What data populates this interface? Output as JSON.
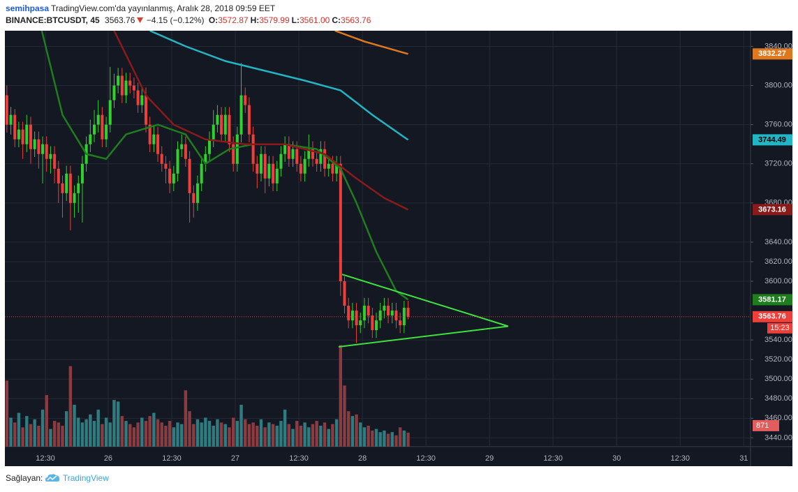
{
  "header": {
    "author": "semihpasa",
    "published": "TradingView.com'da yayınlanmış, Aralık 28, 2018 09:59 EET",
    "symbol": "BINANCE:BTCUSDT, 45",
    "last": "3563.76",
    "change": "−4.15 (−0.12%)",
    "ohlc": [
      {
        "label": "O:",
        "value": "3572.87"
      },
      {
        "label": "H:",
        "value": "3579.99"
      },
      {
        "label": "L:",
        "value": "3561.00"
      },
      {
        "label": "C:",
        "value": "3563.76"
      }
    ]
  },
  "chart_data": {
    "type": "candlestick",
    "up_color": "#2fd12f",
    "down_color": "#ef3f3a",
    "up_volume_color": "#2f7c80",
    "down_volume_color": "#8c3b40",
    "ylim": [
      3431,
      3856
    ],
    "yticks": [
      {
        "value": 3440,
        "label": "3440.00"
      },
      {
        "value": 3460,
        "label": "3460.00"
      },
      {
        "value": 3480,
        "label": "3480.00"
      },
      {
        "value": 3500,
        "label": "3500.00"
      },
      {
        "value": 3520,
        "label": "3520.00"
      },
      {
        "value": 3540,
        "label": "3540.00"
      },
      {
        "value": 3600,
        "label": "3600.00"
      },
      {
        "value": 3620,
        "label": "3620.00"
      },
      {
        "value": 3640,
        "label": "3640.00"
      },
      {
        "value": 3680,
        "label": "3680.00"
      },
      {
        "value": 3720,
        "label": "3720.00"
      },
      {
        "value": 3760,
        "label": "3760.00"
      },
      {
        "value": 3800,
        "label": "3800.00"
      },
      {
        "value": 3840,
        "label": "3840.00"
      }
    ],
    "xlim": [
      -0.5,
      187.2
    ],
    "xticks": [
      {
        "value": 9.7,
        "label": "12:30"
      },
      {
        "value": 25.5,
        "label": "26"
      },
      {
        "value": 41.5,
        "label": "12:30"
      },
      {
        "value": 57.5,
        "label": "27"
      },
      {
        "value": 73.5,
        "label": "12:30"
      },
      {
        "value": 89.5,
        "label": "28"
      },
      {
        "value": 105.5,
        "label": "12:30"
      },
      {
        "value": 121.5,
        "label": "29"
      },
      {
        "value": 137.5,
        "label": "12:30"
      },
      {
        "value": 153.5,
        "label": "30"
      },
      {
        "value": 169.5,
        "label": "12:30"
      },
      {
        "value": 185.5,
        "label": "31"
      }
    ],
    "grid": true,
    "ohlc": [
      [
        3790,
        3800,
        3752,
        3760
      ],
      [
        3760,
        3778,
        3750,
        3770
      ],
      [
        3770,
        3776,
        3737,
        3745
      ],
      [
        3745,
        3763,
        3737,
        3755
      ],
      [
        3755,
        3763,
        3725,
        3740
      ],
      [
        3740,
        3770,
        3732,
        3760
      ],
      [
        3760,
        3768,
        3720,
        3735
      ],
      [
        3735,
        3753,
        3727,
        3745
      ],
      [
        3745,
        3753,
        3715,
        3730
      ],
      [
        3730,
        3748,
        3700,
        3740
      ],
      [
        3740,
        3748,
        3712,
        3725
      ],
      [
        3725,
        3738,
        3710,
        3730
      ],
      [
        3730,
        3738,
        3700,
        3715
      ],
      [
        3715,
        3723,
        3680,
        3700
      ],
      [
        3700,
        3708,
        3665,
        3690
      ],
      [
        3690,
        3718,
        3682,
        3710
      ],
      [
        3710,
        3718,
        3652,
        3680
      ],
      [
        3680,
        3698,
        3665,
        3690
      ],
      [
        3690,
        3708,
        3670,
        3700
      ],
      [
        3700,
        3728,
        3660,
        3720
      ],
      [
        3720,
        3748,
        3712,
        3740
      ],
      [
        3740,
        3765,
        3732,
        3750
      ],
      [
        3750,
        3775,
        3742,
        3760
      ],
      [
        3760,
        3785,
        3752,
        3770
      ],
      [
        3770,
        3778,
        3737,
        3745
      ],
      [
        3745,
        3768,
        3737,
        3760
      ],
      [
        3760,
        3819,
        3752,
        3785
      ],
      [
        3785,
        3812,
        3777,
        3800
      ],
      [
        3800,
        3818,
        3792,
        3810
      ],
      [
        3810,
        3818,
        3782,
        3790
      ],
      [
        3790,
        3813,
        3782,
        3805
      ],
      [
        3805,
        3813,
        3792,
        3800
      ],
      [
        3800,
        3808,
        3787,
        3795
      ],
      [
        3795,
        3803,
        3772,
        3780
      ],
      [
        3780,
        3798,
        3772,
        3790
      ],
      [
        3790,
        3798,
        3752,
        3760
      ],
      [
        3760,
        3768,
        3732,
        3740
      ],
      [
        3740,
        3758,
        3732,
        3750
      ],
      [
        3750,
        3758,
        3722,
        3730
      ],
      [
        3730,
        3738,
        3712,
        3720
      ],
      [
        3720,
        3728,
        3700,
        3715
      ],
      [
        3715,
        3723,
        3690,
        3700
      ],
      [
        3700,
        3718,
        3692,
        3710
      ],
      [
        3710,
        3743,
        3702,
        3735
      ],
      [
        3735,
        3750,
        3727,
        3740
      ],
      [
        3740,
        3748,
        3717,
        3725
      ],
      [
        3725,
        3733,
        3660,
        3690
      ],
      [
        3690,
        3698,
        3665,
        3680
      ],
      [
        3680,
        3708,
        3672,
        3700
      ],
      [
        3700,
        3728,
        3692,
        3720
      ],
      [
        3720,
        3738,
        3712,
        3730
      ],
      [
        3730,
        3753,
        3722,
        3745
      ],
      [
        3745,
        3775,
        3737,
        3760
      ],
      [
        3760,
        3780,
        3752,
        3770
      ],
      [
        3770,
        3778,
        3742,
        3750
      ],
      [
        3750,
        3778,
        3742,
        3770
      ],
      [
        3770,
        3778,
        3732,
        3740
      ],
      [
        3740,
        3748,
        3712,
        3720
      ],
      [
        3720,
        3758,
        3712,
        3750
      ],
      [
        3750,
        3823,
        3742,
        3790
      ],
      [
        3790,
        3798,
        3772,
        3780
      ],
      [
        3780,
        3788,
        3742,
        3750
      ],
      [
        3750,
        3758,
        3712,
        3720
      ],
      [
        3720,
        3728,
        3695,
        3710
      ],
      [
        3710,
        3738,
        3702,
        3730
      ],
      [
        3730,
        3738,
        3690,
        3705
      ],
      [
        3705,
        3728,
        3697,
        3720
      ],
      [
        3720,
        3728,
        3692,
        3700
      ],
      [
        3700,
        3723,
        3692,
        3715
      ],
      [
        3715,
        3738,
        3707,
        3730
      ],
      [
        3730,
        3748,
        3722,
        3740
      ],
      [
        3740,
        3748,
        3717,
        3725
      ],
      [
        3725,
        3743,
        3717,
        3735
      ],
      [
        3735,
        3743,
        3712,
        3720
      ],
      [
        3720,
        3728,
        3702,
        3710
      ],
      [
        3710,
        3733,
        3702,
        3725
      ],
      [
        3725,
        3750,
        3717,
        3735
      ],
      [
        3735,
        3743,
        3717,
        3725
      ],
      [
        3725,
        3733,
        3712,
        3720
      ],
      [
        3720,
        3743,
        3712,
        3735
      ],
      [
        3735,
        3743,
        3707,
        3715
      ],
      [
        3715,
        3728,
        3707,
        3720
      ],
      [
        3720,
        3728,
        3702,
        3710
      ],
      [
        3710,
        3728,
        3702,
        3720
      ],
      [
        3720,
        3728,
        3585,
        3600
      ],
      [
        3600,
        3605,
        3567,
        3575
      ],
      [
        3575,
        3583,
        3552,
        3560
      ],
      [
        3560,
        3578,
        3552,
        3570
      ],
      [
        3570,
        3578,
        3537,
        3555
      ],
      [
        3555,
        3568,
        3547,
        3560
      ],
      [
        3560,
        3583,
        3552,
        3575
      ],
      [
        3575,
        3583,
        3557,
        3565
      ],
      [
        3565,
        3573,
        3542,
        3550
      ],
      [
        3550,
        3568,
        3542,
        3560
      ],
      [
        3560,
        3578,
        3552,
        3570
      ],
      [
        3570,
        3583,
        3562,
        3575
      ],
      [
        3575,
        3583,
        3557,
        3565
      ],
      [
        3565,
        3578,
        3557,
        3570
      ],
      [
        3570,
        3578,
        3552,
        3560
      ],
      [
        3560,
        3568,
        3547,
        3555
      ],
      [
        3555,
        3580,
        3547,
        3572.87
      ],
      [
        3572.87,
        3579.99,
        3561,
        3563.76
      ]
    ],
    "vlim": [
      0,
      6500
    ],
    "volume": [
      4100,
      1800,
      1500,
      2100,
      1200,
      1900,
      1400,
      1700,
      1300,
      2300,
      3200,
      1100,
      1600,
      1500,
      1300,
      2200,
      5000,
      2600,
      1800,
      1500,
      1700,
      2000,
      1600,
      2300,
      1400,
      1800,
      1500,
      2900,
      2800,
      1900,
      1600,
      1400,
      1200,
      1500,
      1800,
      1600,
      1900,
      2100,
      1700,
      1500,
      1300,
      1600,
      1200,
      1500,
      1400,
      3500,
      2200,
      1400,
      1700,
      1500,
      1800,
      1600,
      1300,
      1700,
      1500,
      1400,
      1200,
      1800,
      1600,
      2600,
      1700,
      1400,
      1500,
      1300,
      1700,
      1200,
      1500,
      1400,
      1300,
      1600,
      2300,
      1400,
      1100,
      1600,
      1300,
      1500,
      1200,
      1400,
      1600,
      1300,
      1500,
      1100,
      1400,
      1700,
      6300,
      3800,
      2200,
      1900,
      2000,
      1500,
      1200,
      1300,
      1000,
      1100,
      900,
      1000,
      800,
      900,
      700,
      1200,
      1000,
      871
    ],
    "volume_tag_color": "#e35d5d",
    "ma": [
      {
        "color": "#1e7e1e",
        "label_color": "#ffffff",
        "x": [
          8.8,
          14,
          20,
          25,
          30,
          38,
          45,
          50,
          56,
          62,
          70,
          78,
          84,
          88,
          93,
          98,
          101
        ],
        "values": [
          3856,
          3770,
          3730,
          3725,
          3750,
          3760,
          3750,
          3720,
          3735,
          3740,
          3740,
          3735,
          3715,
          3680,
          3630,
          3590,
          3581.17
        ]
      },
      {
        "color": "#8b1a1a",
        "label_color": "#ffffff",
        "x": [
          27,
          35,
          42,
          50,
          60,
          70,
          80,
          88,
          95,
          101
        ],
        "values": [
          3856,
          3790,
          3760,
          3745,
          3740,
          3740,
          3730,
          3705,
          3685,
          3673.16
        ]
      },
      {
        "color": "#22b5c4",
        "label_color": "#000000",
        "x": [
          36,
          45,
          55,
          65,
          75,
          84,
          92,
          101
        ],
        "values": [
          3856,
          3840,
          3825,
          3815,
          3805,
          3795,
          3770,
          3744.49
        ]
      },
      {
        "color": "#e0781e",
        "label_color": "#ffffff",
        "x": [
          82.6,
          90,
          101
        ],
        "values": [
          3856,
          3845,
          3832.27
        ]
      }
    ],
    "countdown": "15:23",
    "drawing": {
      "color": "#3ee23e",
      "points": [
        [
          84.4,
          3607
        ],
        [
          126.2,
          3554
        ],
        [
          83.5,
          3533
        ]
      ]
    }
  },
  "footer": {
    "prefix": "Sağlayan:",
    "brand": "TradingView"
  }
}
